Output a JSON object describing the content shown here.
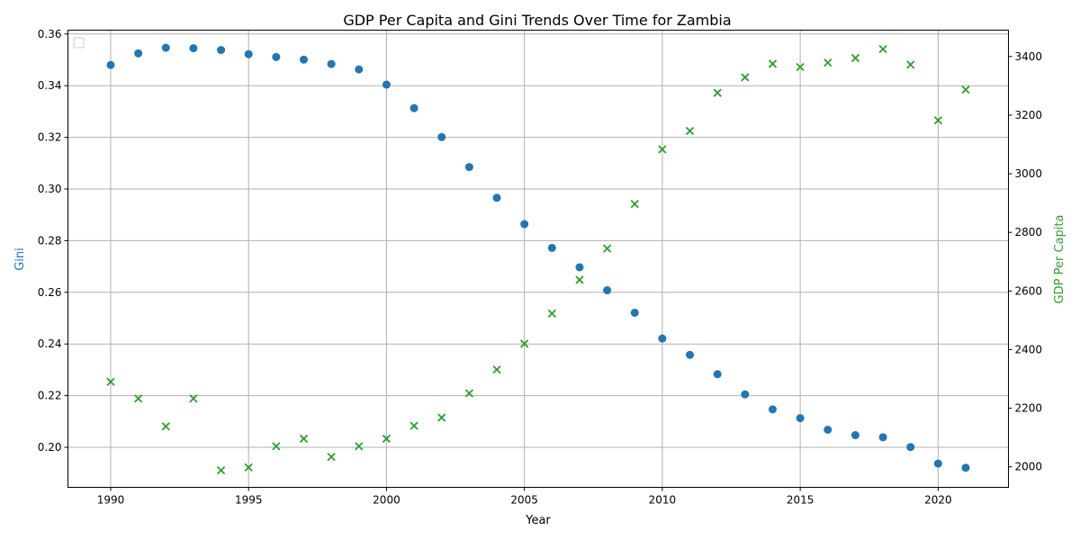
{
  "chart_data": {
    "type": "scatter",
    "title": "GDP Per Capita and Gini Trends Over Time for Zambia",
    "xlabel": "Year",
    "ylabel_left": "Gini",
    "ylabel_right": "GDP Per Capita",
    "xlim": [
      1988.45,
      1992.55
    ],
    "x_ticks": [
      1990,
      1995,
      2000,
      2005,
      2010,
      2015,
      2020
    ],
    "ylim_left": [
      0.1845,
      0.3615
    ],
    "y_ticks_left": [
      0.2,
      0.22,
      0.24,
      0.26,
      0.28,
      0.3,
      0.32,
      0.34,
      0.36
    ],
    "ylim_right": [
      1930,
      3490
    ],
    "y_ticks_right": [
      2000,
      2200,
      2400,
      2600,
      2800,
      3000,
      3200,
      3400
    ],
    "grid": true,
    "legend": "upper-left (empty)",
    "x": [
      1990,
      1991,
      1992,
      1993,
      1994,
      1995,
      1996,
      1997,
      1998,
      1999,
      2000,
      2001,
      2002,
      2003,
      2004,
      2005,
      2006,
      2007,
      2008,
      2009,
      2010,
      2011,
      2012,
      2013,
      2014,
      2015,
      2016,
      2017,
      2018,
      2019,
      2020,
      2021
    ],
    "series": [
      {
        "name": "Gini",
        "axis": "left",
        "marker": "circle",
        "color": "#1f77b4",
        "values": [
          0.348,
          0.3525,
          0.3547,
          0.3545,
          0.3538,
          0.3522,
          0.3511,
          0.3501,
          0.3484,
          0.3463,
          0.3404,
          0.3313,
          0.3201,
          0.3085,
          0.2966,
          0.2864,
          0.2772,
          0.2697,
          0.2608,
          0.2521,
          0.2421,
          0.2358,
          0.2283,
          0.2205,
          0.2147,
          0.2113,
          0.2068,
          0.2047,
          0.2039,
          0.2001,
          0.1937,
          0.1921
        ]
      },
      {
        "name": "GDP Per Capita",
        "axis": "right",
        "marker": "x",
        "color": "#2ca02c",
        "values": [
          2290,
          2233,
          2138,
          2233,
          1988,
          1998,
          2070,
          2096,
          2034,
          2070,
          2096,
          2140,
          2168,
          2251,
          2332,
          2420,
          2523,
          2638,
          2745,
          2897,
          3083,
          3146,
          3276,
          3329,
          3375,
          3364,
          3379,
          3395,
          3425,
          3372,
          3182,
          3287
        ]
      }
    ]
  }
}
